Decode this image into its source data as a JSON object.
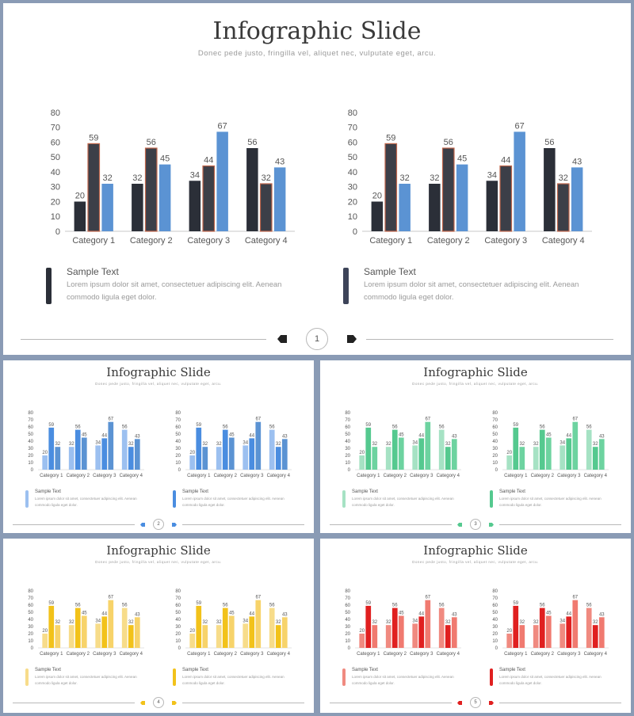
{
  "slides": [
    {
      "title": "Infographic Slide",
      "subtitle": "Donec pede justo, fringilla vel, aliquet nec, vulputate eget, arcu.",
      "page": "1",
      "colors": [
        "#2b2f38",
        "#3c3f48",
        "#5b93d3"
      ],
      "legend_colors": [
        "#2b2f38",
        "#3d4459"
      ],
      "stroke": "#c0674d"
    },
    {
      "title": "Infographic Slide",
      "subtitle": "Donec pede justo, fringilla vel, aliquet nec, vulputate eget, arcu.",
      "page": "2",
      "colors": [
        "#9cc0f0",
        "#4a8de0",
        "#5b93d3"
      ],
      "legend_colors": [
        "#9cc0f0",
        "#4a8de0"
      ],
      "stroke": "none"
    },
    {
      "title": "Infographic Slide",
      "subtitle": "Donec pede justo, fringilla vel, aliquet nec, vulputate eget, arcu.",
      "page": "3",
      "colors": [
        "#a6e2c4",
        "#55c98f",
        "#6dd3a0"
      ],
      "legend_colors": [
        "#a6e2c4",
        "#55c98f"
      ],
      "stroke": "none"
    },
    {
      "title": "Infographic Slide",
      "subtitle": "Donec pede justo, fringilla vel, aliquet nec, vulputate eget, arcu.",
      "page": "4",
      "colors": [
        "#f7dc8a",
        "#f2c21a",
        "#f7d36a"
      ],
      "legend_colors": [
        "#f7dc8a",
        "#f2c21a"
      ],
      "stroke": "none"
    },
    {
      "title": "Infographic Slide",
      "subtitle": "Donec pede justo, fringilla vel, aliquet nec, vulputate eget, arcu.",
      "page": "5",
      "colors": [
        "#f08a80",
        "#e02020",
        "#f07a70"
      ],
      "legend_colors": [
        "#f08a80",
        "#e02020"
      ],
      "stroke": "none"
    }
  ],
  "legend": {
    "title": "Sample Text",
    "body": "Lorem ipsum dolor sit amet, consectetuer adipiscing elit. Aenean commodo ligula eget dolor."
  },
  "chart_data": [
    {
      "type": "bar",
      "categories": [
        "Category 1",
        "Category 2",
        "Category 3",
        "Category 4"
      ],
      "series": [
        {
          "values": [
            20,
            32,
            34,
            56
          ]
        },
        {
          "values": [
            59,
            56,
            44,
            32
          ]
        },
        {
          "values": [
            32,
            45,
            67,
            43
          ]
        }
      ],
      "yticks": [
        "0",
        "10",
        "20",
        "30",
        "40",
        "50",
        "60",
        "70",
        "80"
      ],
      "ylim": [
        0,
        80
      ],
      "grid": false
    }
  ]
}
